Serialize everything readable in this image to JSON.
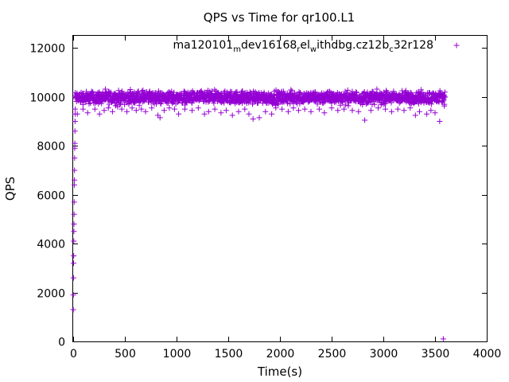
{
  "chart_data": {
    "type": "scatter",
    "title": "QPS vs Time for qr100.L1",
    "xlabel": "Time(s)",
    "ylabel": "QPS",
    "xlim": [
      0,
      4000
    ],
    "ylim": [
      0,
      12500
    ],
    "xticks": [
      0,
      500,
      1000,
      1500,
      2000,
      2500,
      3000,
      3500,
      4000
    ],
    "yticks": [
      0,
      2000,
      4000,
      6000,
      8000,
      10000,
      12000
    ],
    "grid": false,
    "legend_position": "top-right",
    "series": [
      {
        "name_parts": [
          {
            "text": "ma120101",
            "sub": false
          },
          {
            "text": "m",
            "sub": true
          },
          {
            "text": "dev16168",
            "sub": false
          },
          {
            "text": "r",
            "sub": true
          },
          {
            "text": "el",
            "sub": false
          },
          {
            "text": "w",
            "sub": true
          },
          {
            "text": "ithdbg.cz12b",
            "sub": false
          },
          {
            "text": "c",
            "sub": true
          },
          {
            "text": "32r128",
            "sub": false
          }
        ],
        "color": "#9400d3",
        "marker": "+",
        "startup_points": [
          [
            1,
            1300
          ],
          [
            2,
            1900
          ],
          [
            3,
            2600
          ],
          [
            4,
            3200
          ],
          [
            5,
            3500
          ],
          [
            6,
            4100
          ],
          [
            7,
            4500
          ],
          [
            8,
            4800
          ],
          [
            9,
            5200
          ],
          [
            10,
            5700
          ],
          [
            11,
            6400
          ],
          [
            12,
            6600
          ],
          [
            13,
            7000
          ],
          [
            14,
            7500
          ],
          [
            15,
            7900
          ],
          [
            16,
            8100
          ],
          [
            17,
            8600
          ],
          [
            18,
            9000
          ],
          [
            19,
            9300
          ],
          [
            20,
            9500
          ]
        ],
        "steady_band": {
          "x_start": 20,
          "x_end": 3600,
          "center": 10000,
          "band_low": 9600,
          "band_high": 10350
        },
        "outliers": [
          [
            40,
            9300
          ],
          [
            95,
            9500
          ],
          [
            140,
            9350
          ],
          [
            210,
            9500
          ],
          [
            255,
            9300
          ],
          [
            300,
            9450
          ],
          [
            340,
            9550
          ],
          [
            380,
            9400
          ],
          [
            430,
            9600
          ],
          [
            470,
            9500
          ],
          [
            520,
            9400
          ],
          [
            570,
            9550
          ],
          [
            610,
            9450
          ],
          [
            660,
            9500
          ],
          [
            700,
            9400
          ],
          [
            760,
            9550
          ],
          [
            820,
            9250
          ],
          [
            840,
            9150
          ],
          [
            880,
            9450
          ],
          [
            930,
            9550
          ],
          [
            980,
            9500
          ],
          [
            1020,
            9300
          ],
          [
            1080,
            9500
          ],
          [
            1150,
            9450
          ],
          [
            1210,
            9550
          ],
          [
            1270,
            9300
          ],
          [
            1310,
            9400
          ],
          [
            1370,
            9500
          ],
          [
            1430,
            9350
          ],
          [
            1480,
            9450
          ],
          [
            1540,
            9250
          ],
          [
            1600,
            9400
          ],
          [
            1660,
            9500
          ],
          [
            1700,
            9300
          ],
          [
            1740,
            9100
          ],
          [
            1800,
            9150
          ],
          [
            1860,
            9400
          ],
          [
            1920,
            9300
          ],
          [
            1960,
            9550
          ],
          [
            2020,
            9500
          ],
          [
            2080,
            9400
          ],
          [
            2130,
            9550
          ],
          [
            2180,
            9450
          ],
          [
            2240,
            9500
          ],
          [
            2300,
            9400
          ],
          [
            2380,
            9500
          ],
          [
            2430,
            9350
          ],
          [
            2500,
            9550
          ],
          [
            2560,
            9450
          ],
          [
            2620,
            9500
          ],
          [
            2700,
            9450
          ],
          [
            2760,
            9400
          ],
          [
            2820,
            9050
          ],
          [
            2880,
            9450
          ],
          [
            2950,
            9550
          ],
          [
            3020,
            9500
          ],
          [
            3080,
            9400
          ],
          [
            3140,
            9500
          ],
          [
            3200,
            9450
          ],
          [
            3260,
            9550
          ],
          [
            3310,
            9250
          ],
          [
            3350,
            9400
          ],
          [
            3420,
            9300
          ],
          [
            3460,
            9450
          ],
          [
            3500,
            9350
          ],
          [
            3545,
            9000
          ],
          [
            3580,
            100
          ]
        ]
      }
    ]
  }
}
